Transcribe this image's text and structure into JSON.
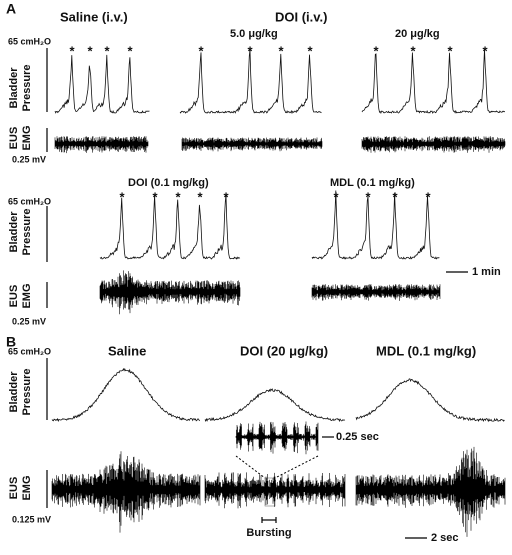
{
  "panel_a": {
    "label": "A",
    "pressure_scale": "65 cmH₂O",
    "pressure_label": [
      "Bladder",
      "Pressure"
    ],
    "emg_label": [
      "EUS",
      "EMG"
    ],
    "emg_scale": "0.25 mV",
    "peak_marker": "*",
    "time_scale": "1 min",
    "groups": [
      {
        "title": "Saline (i.v.)"
      },
      {
        "title": "DOI (i.v.)",
        "subtitle": "5.0 μg/kg"
      },
      {
        "subtitle": "20 μg/kg"
      },
      {
        "title": "DOI (0.1 mg/kg)"
      },
      {
        "title": "MDL (0.1 mg/kg)"
      }
    ]
  },
  "panel_b": {
    "label": "B",
    "pressure_scale": "65 cmH₂O",
    "pressure_label": [
      "Bladder",
      "Pressure"
    ],
    "emg_label": [
      "EUS",
      "EMG"
    ],
    "emg_scale": "0.125 mV",
    "groups": [
      {
        "title": "Saline"
      },
      {
        "title": "DOI (20 μg/kg)"
      },
      {
        "title": "MDL (0.1 mg/kg)"
      }
    ],
    "inset_scale": "0.25 sec",
    "burst_label": "Bursting",
    "time_scale": "2 sec"
  }
}
